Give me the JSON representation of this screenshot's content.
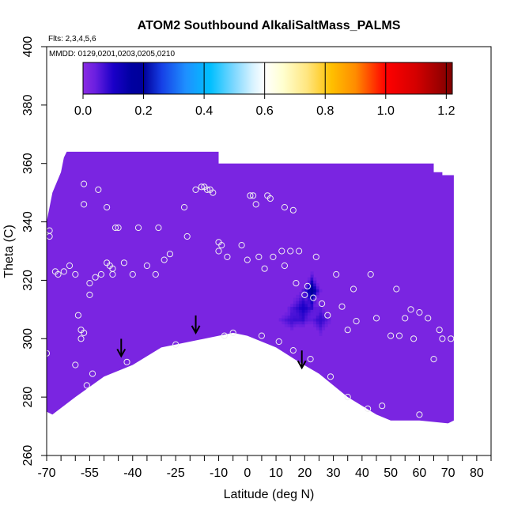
{
  "chart_data": {
    "type": "heatmap",
    "title": "ATOM2 Southbound AlkaliSaltMass_PALMS",
    "flights_label": "Flts: 2,3,4,5,6",
    "dates_label": "MMDD: 0129,0201,0203,0205,0210",
    "xlabel": "Latitude (deg N)",
    "ylabel": "Theta (C)",
    "xlim": [
      -70,
      85
    ],
    "ylim": [
      260,
      400
    ],
    "x_ticks": [
      -70,
      -55,
      -40,
      -25,
      -10,
      0,
      10,
      20,
      30,
      40,
      50,
      60,
      70,
      80
    ],
    "x_minor_ticks": [
      -65,
      -60,
      -50,
      -45,
      -35,
      -30,
      -20,
      -15,
      -5,
      5,
      15,
      25,
      35,
      45,
      55,
      65,
      75,
      85
    ],
    "y_ticks": [
      260,
      280,
      300,
      320,
      340,
      360,
      380,
      400
    ],
    "colorbar": {
      "ticks": [
        0.0,
        0.2,
        0.4,
        0.6,
        0.8,
        1.0,
        1.2
      ],
      "tick_labels": [
        "0.0",
        "0.2",
        "0.4",
        "0.6",
        "0.8",
        "1.0",
        "1.2"
      ],
      "range": [
        0,
        1.22
      ],
      "stops": [
        [
          0.0,
          "#8a2be2"
        ],
        [
          0.04,
          "#6a1fe0"
        ],
        [
          0.1,
          "#1a00c8"
        ],
        [
          0.16,
          "#0000a0"
        ],
        [
          0.2,
          "#00009a"
        ],
        [
          0.26,
          "#1640e6"
        ],
        [
          0.34,
          "#1e90ff"
        ],
        [
          0.42,
          "#00bfff"
        ],
        [
          0.5,
          "#7fd8ff"
        ],
        [
          0.56,
          "#d6f2ff"
        ],
        [
          0.6,
          "#ffffff"
        ],
        [
          0.66,
          "#ffffd0"
        ],
        [
          0.74,
          "#ffe680"
        ],
        [
          0.82,
          "#ffc000"
        ],
        [
          0.9,
          "#ff8c00"
        ],
        [
          1.0,
          "#ff0000"
        ],
        [
          1.1,
          "#d40000"
        ],
        [
          1.2,
          "#8b0000"
        ],
        [
          1.22,
          "#800000"
        ]
      ]
    },
    "field_base_value": 0.02,
    "field_base_color": "#8a2be2",
    "data_region": {
      "top_boundary": [
        [
          -72,
          330
        ],
        [
          -68,
          350
        ],
        [
          -65,
          357
        ],
        [
          -64,
          362
        ],
        [
          -63,
          364
        ],
        [
          -10,
          364
        ],
        [
          -10,
          360
        ],
        [
          65,
          360
        ],
        [
          65,
          357
        ],
        [
          68,
          357
        ],
        [
          68,
          356
        ],
        [
          72,
          356
        ]
      ],
      "bottom_boundary": [
        [
          -72,
          276
        ],
        [
          -68,
          274
        ],
        [
          -60,
          280
        ],
        [
          -50,
          287
        ],
        [
          -40,
          291
        ],
        [
          -30,
          297
        ],
        [
          -20,
          299
        ],
        [
          -10,
          301
        ],
        [
          -5,
          302
        ],
        [
          0,
          301
        ],
        [
          10,
          297
        ],
        [
          18,
          292
        ],
        [
          25,
          288
        ],
        [
          35,
          280
        ],
        [
          45,
          274
        ],
        [
          50,
          272
        ],
        [
          60,
          272
        ],
        [
          70,
          271
        ],
        [
          72,
          272
        ]
      ]
    },
    "hotspots": [
      {
        "lat": 22,
        "theta": 316,
        "value": 0.16,
        "spread_lat": 2,
        "spread_theta": 4
      },
      {
        "lat": 19,
        "theta": 310,
        "value": 0.08,
        "spread_lat": 4,
        "spread_theta": 5
      },
      {
        "lat": 25,
        "theta": 306,
        "value": 0.06,
        "spread_lat": 3,
        "spread_theta": 4
      },
      {
        "lat": 15,
        "theta": 306,
        "value": 0.05,
        "spread_lat": 4,
        "spread_theta": 3
      }
    ],
    "observations": [
      [
        -72,
        330
      ],
      [
        -71,
        298
      ],
      [
        -70,
        295
      ],
      [
        -69,
        335
      ],
      [
        -69,
        337
      ],
      [
        -67,
        323
      ],
      [
        -66,
        322
      ],
      [
        -64,
        323
      ],
      [
        -62,
        325
      ],
      [
        -60,
        322
      ],
      [
        -60,
        291
      ],
      [
        -59,
        308
      ],
      [
        -58,
        303
      ],
      [
        -58,
        300
      ],
      [
        -57,
        353
      ],
      [
        -57,
        346
      ],
      [
        -57,
        302
      ],
      [
        -56,
        284
      ],
      [
        -55,
        315
      ],
      [
        -55,
        319
      ],
      [
        -54,
        288
      ],
      [
        -53,
        321
      ],
      [
        -52,
        351
      ],
      [
        -51,
        322
      ],
      [
        -49,
        326
      ],
      [
        -49,
        345
      ],
      [
        -48,
        325
      ],
      [
        -47,
        324
      ],
      [
        -47,
        322
      ],
      [
        -46,
        338
      ],
      [
        -45,
        338
      ],
      [
        -43,
        326
      ],
      [
        -42,
        292
      ],
      [
        -40,
        322
      ],
      [
        -38,
        338
      ],
      [
        -35,
        325
      ],
      [
        -32,
        322
      ],
      [
        -31,
        338
      ],
      [
        -29,
        327
      ],
      [
        -27,
        329
      ],
      [
        -25,
        298
      ],
      [
        -22,
        345
      ],
      [
        -21,
        335
      ],
      [
        -18,
        351
      ],
      [
        -16,
        352
      ],
      [
        -15,
        352
      ],
      [
        -14,
        351
      ],
      [
        -13,
        351
      ],
      [
        -12,
        350
      ],
      [
        -10,
        330
      ],
      [
        -10,
        333
      ],
      [
        -9,
        332
      ],
      [
        -8,
        301
      ],
      [
        -7,
        328
      ],
      [
        -5,
        302
      ],
      [
        -2,
        332
      ],
      [
        0,
        327
      ],
      [
        1,
        349
      ],
      [
        2,
        349
      ],
      [
        3,
        346
      ],
      [
        4,
        328
      ],
      [
        5,
        301
      ],
      [
        6,
        324
      ],
      [
        7,
        349
      ],
      [
        8,
        348
      ],
      [
        9,
        328
      ],
      [
        11,
        299
      ],
      [
        12,
        330
      ],
      [
        13,
        345
      ],
      [
        13,
        325
      ],
      [
        15,
        330
      ],
      [
        16,
        344
      ],
      [
        16,
        296
      ],
      [
        17,
        319
      ],
      [
        18,
        330
      ],
      [
        20,
        315
      ],
      [
        21,
        318
      ],
      [
        22,
        293
      ],
      [
        23,
        314
      ],
      [
        24,
        328
      ],
      [
        26,
        312
      ],
      [
        28,
        308
      ],
      [
        29,
        287
      ],
      [
        31,
        322
      ],
      [
        33,
        311
      ],
      [
        35,
        303
      ],
      [
        35,
        280
      ],
      [
        37,
        317
      ],
      [
        38,
        306
      ],
      [
        42,
        276
      ],
      [
        43,
        322
      ],
      [
        45,
        307
      ],
      [
        47,
        277
      ],
      [
        50,
        301
      ],
      [
        52,
        317
      ],
      [
        53,
        301
      ],
      [
        55,
        307
      ],
      [
        57,
        310
      ],
      [
        58,
        300
      ],
      [
        60,
        309
      ],
      [
        60,
        274
      ],
      [
        63,
        307
      ],
      [
        65,
        293
      ],
      [
        67,
        303
      ],
      [
        68,
        300
      ],
      [
        71,
        300
      ]
    ],
    "arrows": [
      [
        -44,
        294
      ],
      [
        -18,
        302
      ],
      [
        19,
        290
      ]
    ]
  }
}
